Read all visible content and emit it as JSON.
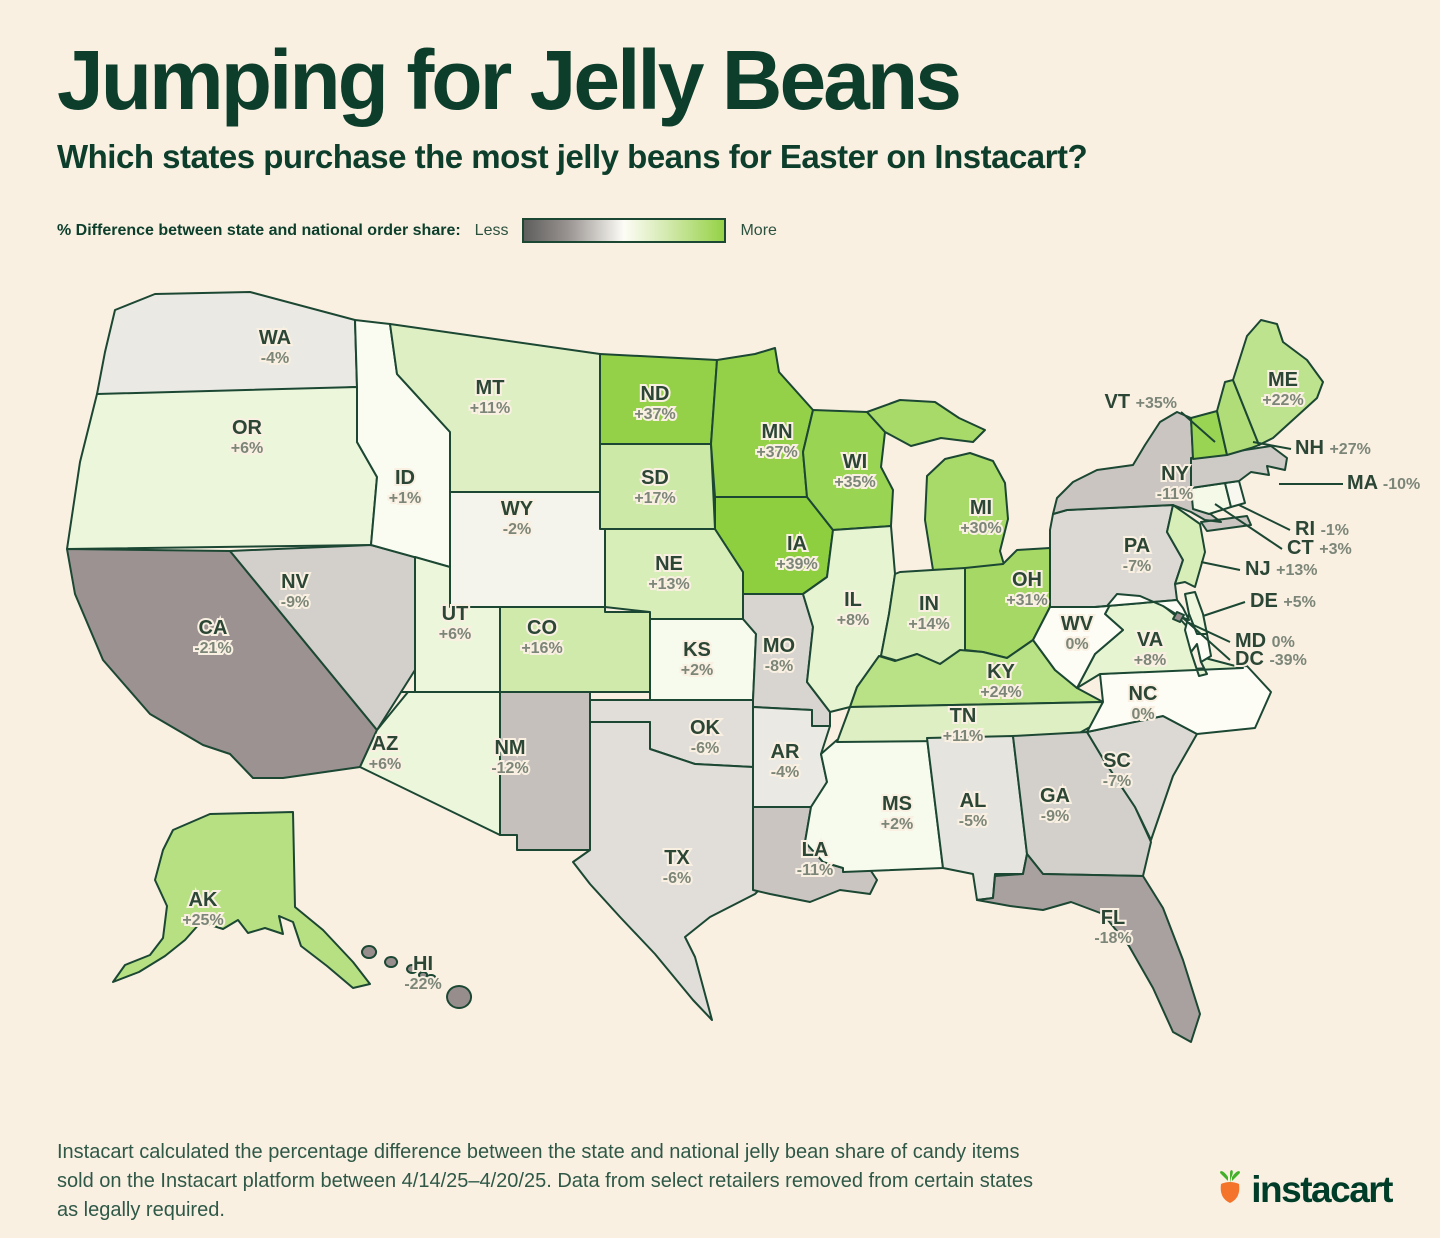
{
  "title": "Jumping for Jelly Beans",
  "subtitle": "Which states purchase the most jelly beans for Easter on Instacart?",
  "legend": {
    "label": "% Difference between state and national order share:",
    "less": "Less",
    "more": "More"
  },
  "footnote": "Instacart calculated the percentage difference between the state and national jelly bean share of candy items sold on the Instacart platform between 4/14/25–4/20/25. Data from select retailers removed from certain states as legally required.",
  "logo": {
    "text": "instacart",
    "carrot_icon": "carrot-icon"
  },
  "colors": {
    "background": "#f9f0e2",
    "title_green": "#0c3e2b",
    "outline_green": "#1b4733",
    "abbr_text": "#2c4636",
    "value_text": "#7c8678",
    "positive_max": "#8ecf40",
    "negative_max": "#968d8c",
    "neutral": "#fdfdf6",
    "logo_carrot_orange": "#f4742c",
    "logo_leaf_green": "#43b02a"
  },
  "chart_data": {
    "type": "choropleth",
    "title": "Jumping for Jelly Beans",
    "metric": "% difference between state and national jelly bean order share",
    "legend": {
      "low_label": "Less",
      "high_label": "More"
    },
    "value_range_displayed": [
      -39,
      39
    ],
    "states": [
      {
        "abbr": "WA",
        "value": -4
      },
      {
        "abbr": "OR",
        "value": 6
      },
      {
        "abbr": "CA",
        "value": -21
      },
      {
        "abbr": "NV",
        "value": -9
      },
      {
        "abbr": "ID",
        "value": 1
      },
      {
        "abbr": "MT",
        "value": 11
      },
      {
        "abbr": "WY",
        "value": -2
      },
      {
        "abbr": "UT",
        "value": 6
      },
      {
        "abbr": "AZ",
        "value": 6
      },
      {
        "abbr": "CO",
        "value": 16
      },
      {
        "abbr": "NM",
        "value": -12
      },
      {
        "abbr": "ND",
        "value": 37
      },
      {
        "abbr": "SD",
        "value": 17
      },
      {
        "abbr": "NE",
        "value": 13
      },
      {
        "abbr": "KS",
        "value": 2
      },
      {
        "abbr": "OK",
        "value": -6
      },
      {
        "abbr": "TX",
        "value": -6
      },
      {
        "abbr": "MN",
        "value": 37
      },
      {
        "abbr": "IA",
        "value": 39
      },
      {
        "abbr": "MO",
        "value": -8
      },
      {
        "abbr": "AR",
        "value": -4
      },
      {
        "abbr": "LA",
        "value": -11
      },
      {
        "abbr": "WI",
        "value": 35
      },
      {
        "abbr": "IL",
        "value": 8
      },
      {
        "abbr": "MS",
        "value": 2
      },
      {
        "abbr": "MI",
        "value": 30
      },
      {
        "abbr": "IN",
        "value": 14
      },
      {
        "abbr": "OH",
        "value": 31
      },
      {
        "abbr": "KY",
        "value": 24
      },
      {
        "abbr": "TN",
        "value": 11
      },
      {
        "abbr": "AL",
        "value": -5
      },
      {
        "abbr": "GA",
        "value": -9
      },
      {
        "abbr": "FL",
        "value": -18
      },
      {
        "abbr": "SC",
        "value": -7
      },
      {
        "abbr": "NC",
        "value": 0
      },
      {
        "abbr": "VA",
        "value": 8
      },
      {
        "abbr": "WV",
        "value": 0
      },
      {
        "abbr": "PA",
        "value": -7
      },
      {
        "abbr": "NY",
        "value": -11
      },
      {
        "abbr": "NJ",
        "value": 13
      },
      {
        "abbr": "DE",
        "value": 5
      },
      {
        "abbr": "MD",
        "value": 0
      },
      {
        "abbr": "DC",
        "value": -39
      },
      {
        "abbr": "CT",
        "value": 3
      },
      {
        "abbr": "RI",
        "value": -1
      },
      {
        "abbr": "MA",
        "value": -10
      },
      {
        "abbr": "VT",
        "value": 35
      },
      {
        "abbr": "NH",
        "value": 27
      },
      {
        "abbr": "ME",
        "value": 22
      },
      {
        "abbr": "AK",
        "value": 25
      },
      {
        "abbr": "HI",
        "value": -22
      }
    ]
  }
}
